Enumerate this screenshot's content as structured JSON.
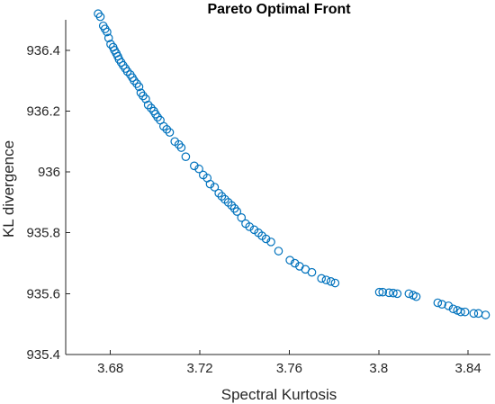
{
  "chart_data": {
    "type": "scatter",
    "title": "Pareto Optimal Front",
    "xlabel": "Spectral Kurtosis",
    "ylabel": "KL divergence",
    "xlim": [
      3.66,
      3.85
    ],
    "ylim": [
      935.4,
      936.5
    ],
    "xticks": [
      3.68,
      3.72,
      3.76,
      3.8,
      3.84
    ],
    "xtick_labels": [
      "3.68",
      "3.72",
      "3.76",
      "3.8",
      "3.84"
    ],
    "yticks": [
      935.4,
      935.6,
      935.8,
      936.0,
      936.2,
      936.4
    ],
    "ytick_labels": [
      "935.4",
      "935.6",
      "935.8",
      "936",
      "936.2",
      "936.4"
    ],
    "grid": false,
    "marker": "open-circle",
    "color": "#0072BD",
    "series": [
      {
        "x": [
          3.6745,
          3.6755,
          3.6768,
          3.6776,
          3.6785,
          3.6792,
          3.6801,
          3.6812,
          3.6818,
          3.6826,
          3.6833,
          3.6839,
          3.6848,
          3.6857,
          3.6867,
          3.6876,
          3.6889,
          3.6898,
          3.6906,
          3.6918,
          3.6928,
          3.6936,
          3.6946,
          3.6958,
          3.6969,
          3.6982,
          3.6994,
          3.7002,
          3.7011,
          3.7023,
          3.7038,
          3.7052,
          3.7065,
          3.7088,
          3.7106,
          3.7117,
          3.7137,
          3.7175,
          3.7196,
          3.7215,
          3.7233,
          3.7246,
          3.7266,
          3.7285,
          3.7298,
          3.7312,
          3.7327,
          3.7342,
          3.7355,
          3.7366,
          3.7386,
          3.7405,
          3.7422,
          3.7443,
          3.7462,
          3.7478,
          3.7496,
          3.7518,
          3.7552,
          3.7603,
          3.7625,
          3.7646,
          3.7672,
          3.7701,
          3.7744,
          3.7765,
          3.7786,
          3.7805,
          3.8003,
          3.8018,
          3.8046,
          3.8065,
          3.8083,
          3.8135,
          3.8154,
          3.8168,
          3.8264,
          3.8283,
          3.8312,
          3.8333,
          3.8352,
          3.8367,
          3.8386,
          3.8425,
          3.8446,
          3.8478
        ],
        "y": [
          936.52,
          936.51,
          936.48,
          936.47,
          936.46,
          936.44,
          936.42,
          936.41,
          936.4,
          936.39,
          936.38,
          936.37,
          936.36,
          936.35,
          936.34,
          936.33,
          936.32,
          936.31,
          936.3,
          936.29,
          936.28,
          936.26,
          936.25,
          936.24,
          936.22,
          936.21,
          936.2,
          936.19,
          936.18,
          936.17,
          936.15,
          936.14,
          936.13,
          936.1,
          936.09,
          936.08,
          936.05,
          936.02,
          936.01,
          935.99,
          935.98,
          935.96,
          935.95,
          935.93,
          935.92,
          935.91,
          935.9,
          935.89,
          935.88,
          935.87,
          935.85,
          935.83,
          935.82,
          935.81,
          935.8,
          935.79,
          935.78,
          935.77,
          935.74,
          935.71,
          935.7,
          935.69,
          935.68,
          935.67,
          935.65,
          935.645,
          935.64,
          935.635,
          935.605,
          935.605,
          935.603,
          935.602,
          935.6,
          935.6,
          935.595,
          935.59,
          935.57,
          935.565,
          935.56,
          935.55,
          935.545,
          935.54,
          935.54,
          935.535,
          935.535,
          935.53
        ]
      }
    ]
  }
}
